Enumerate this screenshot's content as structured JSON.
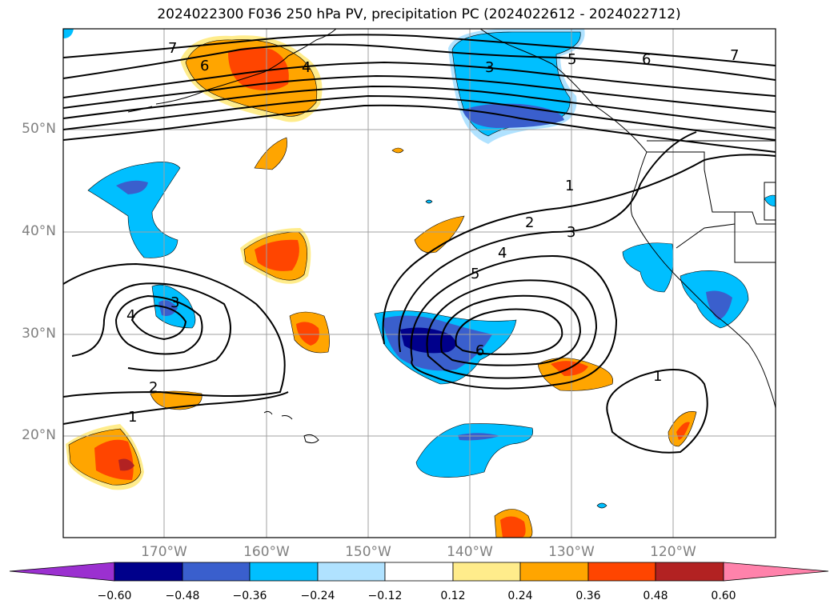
{
  "title": "2024022300 F036 250 hPa PV, precipitation PC (2024022612 - 2024022712)",
  "lat_ticks": [
    "50°N",
    "40°N",
    "30°N",
    "20°N"
  ],
  "lon_ticks": [
    "170°W",
    "160°W",
    "150°W",
    "140°W",
    "130°W",
    "120°W"
  ],
  "contour_labels": [
    "7",
    "6",
    "4",
    "3",
    "5",
    "6",
    "7",
    "1",
    "2",
    "3",
    "4",
    "5",
    "6",
    "1",
    "3",
    "4",
    "2",
    "1"
  ],
  "colorbar": {
    "labels": [
      "−0.60",
      "−0.48",
      "−0.36",
      "−0.24",
      "−0.12",
      "0.12",
      "0.24",
      "0.36",
      "0.48",
      "0.60"
    ],
    "colors": [
      "#9b30d0",
      "#00008b",
      "#3a5fcd",
      "#00bfff",
      "#b0e2ff",
      "#ffffff",
      "#ffec8b",
      "#ffa500",
      "#ff4500",
      "#b22222",
      "#ff82ab"
    ]
  }
}
